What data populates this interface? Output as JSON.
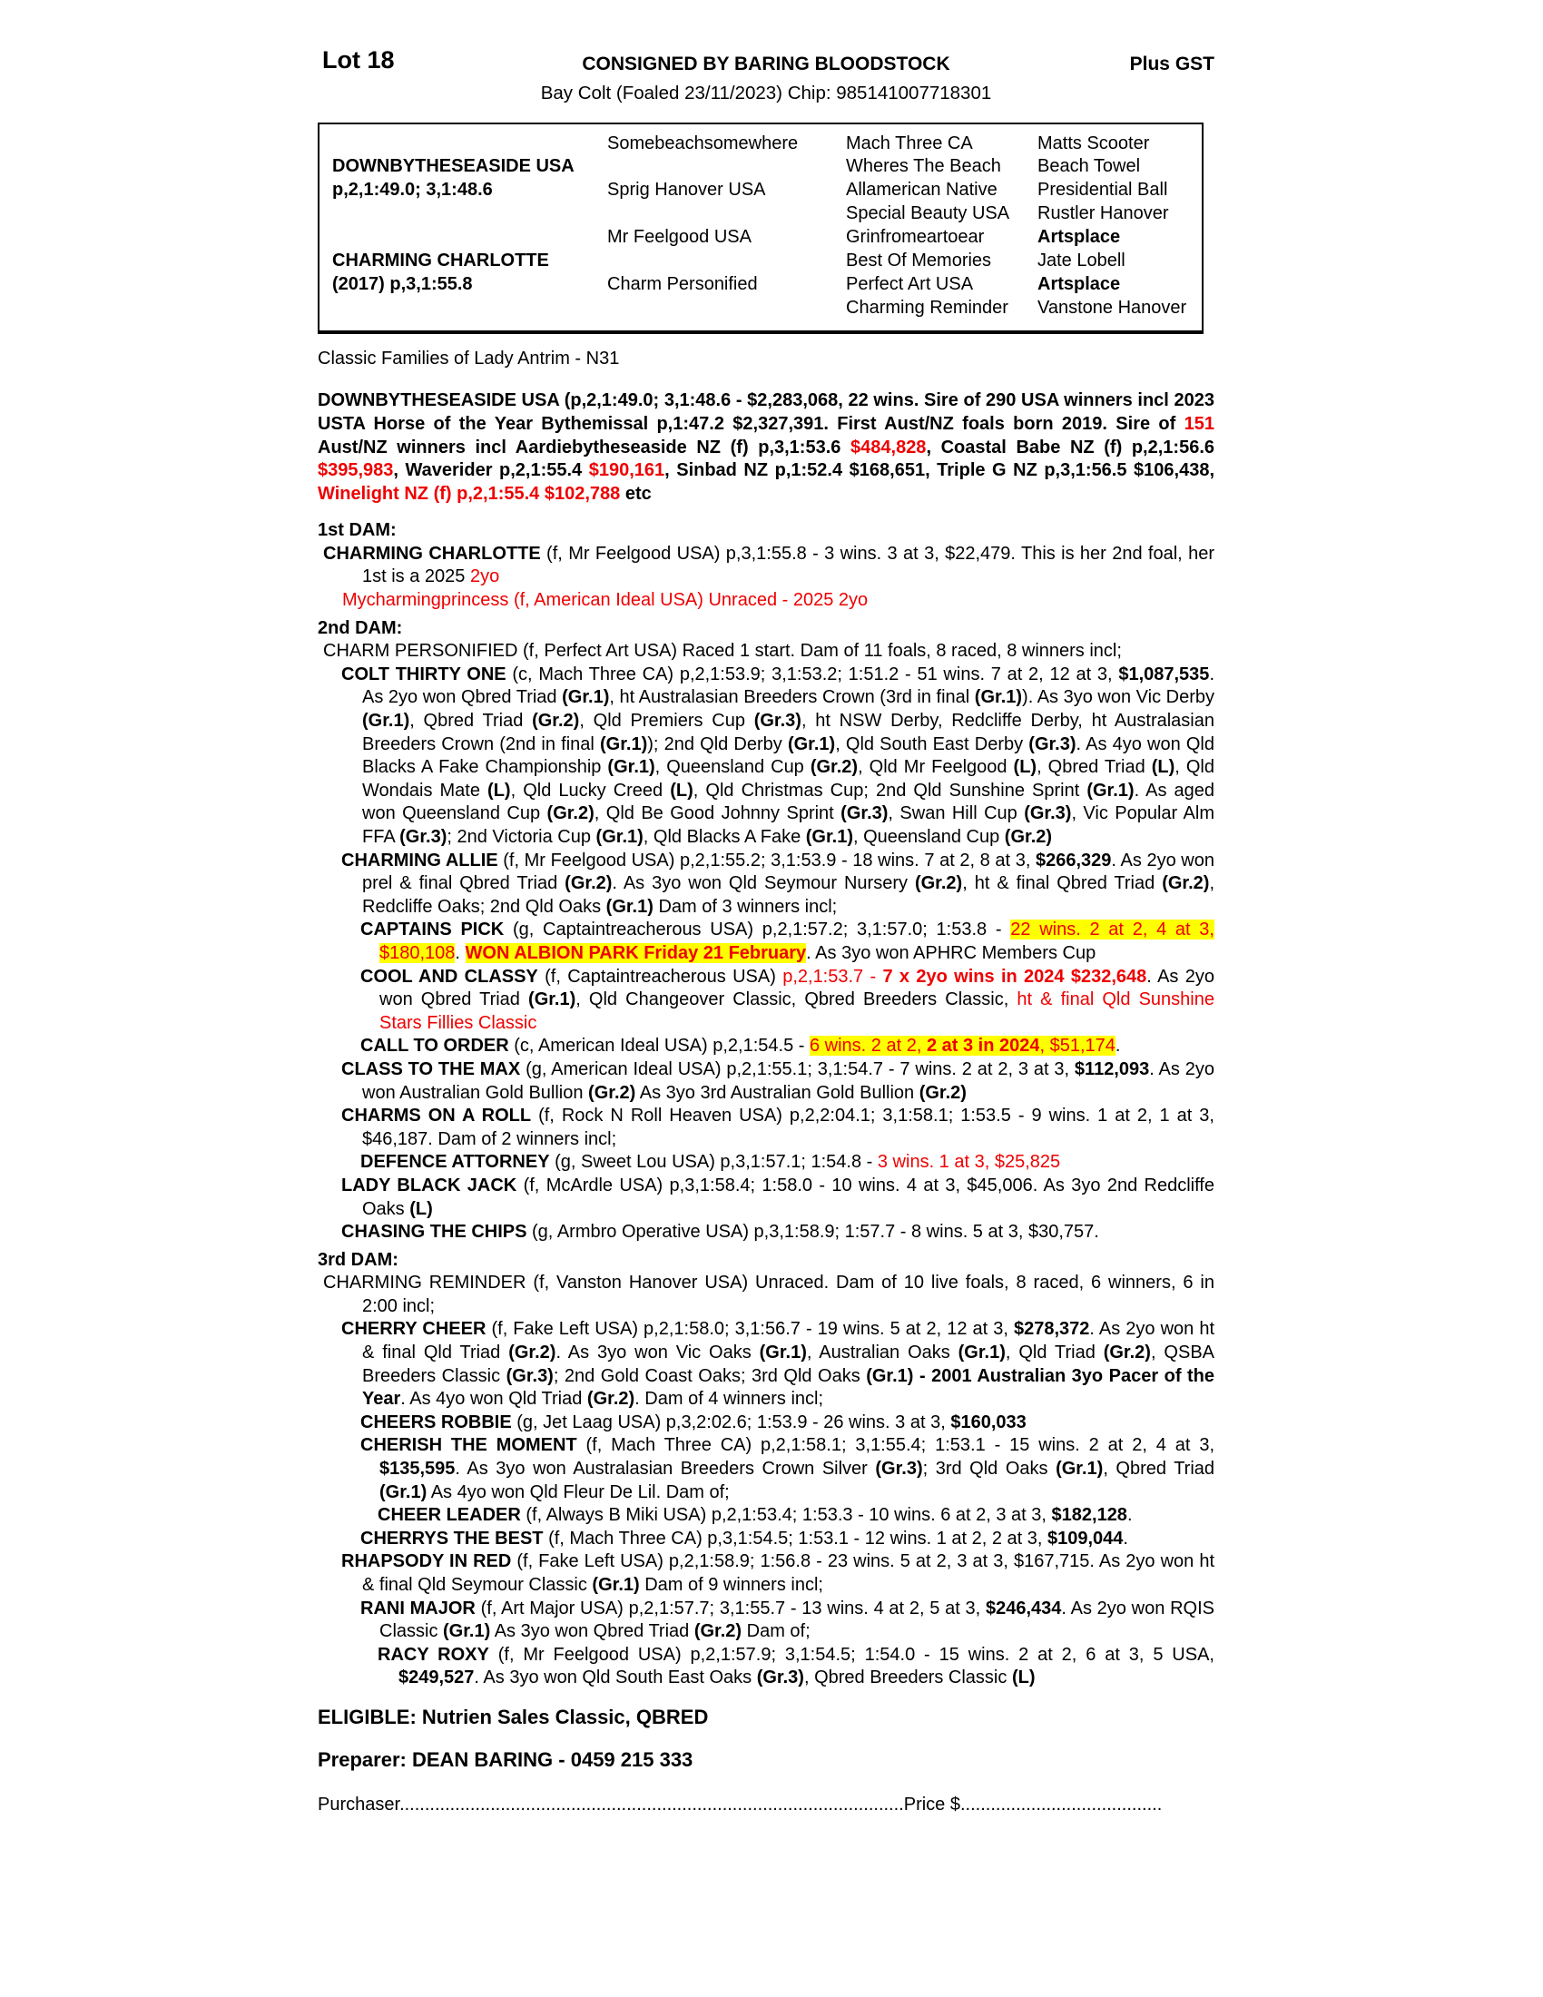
{
  "colors": {
    "accent_red": "#ee0000",
    "highlight_yellow": "#ffff00"
  },
  "header": {
    "lot": "Lot 18",
    "consigned": "CONSIGNED BY BARING BLOODSTOCK",
    "plus_gst": "Plus GST",
    "subtitle": "Bay Colt (Foaled 23/11/2023) Chip: 985141007718301"
  },
  "pedigree": {
    "rows": [
      {
        "c1": "",
        "c2": "Somebeachsomewhere",
        "c3": "Mach Three CA",
        "c4": "Matts Scooter"
      },
      {
        "c1": "DOWNBYTHESEASIDE USA",
        "c2": "",
        "c3": "Wheres The Beach",
        "c4": "Beach Towel"
      },
      {
        "c1": "p,2,1:49.0; 3,1:48.6",
        "c2": "Sprig Hanover USA",
        "c3": "Allamerican Native",
        "c4": "Presidential Ball"
      },
      {
        "c1": "",
        "c2": "",
        "c3": "Special Beauty USA",
        "c4": "Rustler Hanover"
      },
      {
        "c1": "",
        "c2": "Mr Feelgood USA",
        "c3": "Grinfromeartoear",
        "c4": "Artsplace"
      },
      {
        "c1": "CHARMING CHARLOTTE",
        "c2": "",
        "c3": "Best Of Memories",
        "c4": "Jate Lobell"
      },
      {
        "c1": "(2017) p,3,1:55.8",
        "c2": "Charm Personified",
        "c3": "Perfect Art USA",
        "c4": "Artsplace"
      },
      {
        "c1": "",
        "c2": "",
        "c3": "Charming Reminder",
        "c4": "Vanstone Hanover"
      }
    ]
  },
  "family_line": "Classic Families of Lady Antrim - N31",
  "sire": {
    "s": [
      {
        "t": "DOWNBYTHESEASIDE USA (p,2,1:49.0; 3,1:48.6 - $2,283,068, 22 wins. Sire of 290 USA winners incl 2023 USTA Horse of the Year Bythemissal p,1:47.2 $2,327,391. First Aust/NZ foals born 2019. Sire of "
      },
      {
        "t": "151",
        "f": "r"
      },
      {
        "t": " Aust/NZ winners incl Aardiebytheseaside NZ (f) p,3,1:53.6 "
      },
      {
        "t": "$484,828",
        "f": "r"
      },
      {
        "t": ", Coastal Babe NZ (f) p,2,1:56.6 "
      },
      {
        "t": "$395,983",
        "f": "r"
      },
      {
        "t": ", Waverider p,2,1:55.4 "
      },
      {
        "t": "$190,161",
        "f": "r"
      },
      {
        "t": ", Sinbad NZ p,1:52.4 $168,651, Triple G NZ p,3,1:56.5 $106,438, "
      },
      {
        "t": "Winelight NZ (f) p,2,1:55.4 $102,788",
        "f": "r"
      },
      {
        "t": " etc"
      }
    ]
  },
  "dams": {
    "first_heading": "1st DAM:",
    "second_heading": "2nd DAM:",
    "third_heading": "3rd DAM:"
  },
  "entries": {
    "charming_charlotte": {
      "s": [
        {
          "t": "CHARMING CHARLOTTE",
          "f": "b"
        },
        {
          "t": " (f, Mr Feelgood USA) p,3,1:55.8 - 3 wins. 3 at 3, $22,479. This is her 2nd foal, her 1st is a 2025 "
        },
        {
          "t": "2yo",
          "f": "r"
        }
      ]
    },
    "mycharmingprincess": {
      "s": [
        {
          "t": "Mycharmingprincess (f, American Ideal USA) Unraced - 2025 2yo",
          "f": "r"
        }
      ]
    },
    "charm_personified": {
      "s": [
        {
          "t": "CHARM PERSONIFIED (f, Perfect Art USA) Raced 1 start. Dam of 11 foals, 8 raced, 8 winners incl;"
        }
      ]
    },
    "colt_thirty_one": {
      "s": [
        {
          "t": "COLT THIRTY ONE",
          "f": "b"
        },
        {
          "t": " (c, Mach Three CA) p,2,1:53.9; 3,1:53.2; 1:51.2 - 51 wins. 7 at 2, 12 at 3, "
        },
        {
          "t": "$1,087,535",
          "f": "b"
        },
        {
          "t": ". As 2yo won Qbred Triad "
        },
        {
          "t": "(Gr.1)",
          "f": "b"
        },
        {
          "t": ", ht Australasian Breeders Crown (3rd in final "
        },
        {
          "t": "(Gr.1)",
          "f": "b"
        },
        {
          "t": "). As 3yo won Vic Derby "
        },
        {
          "t": "(Gr.1)",
          "f": "b"
        },
        {
          "t": ", Qbred Triad "
        },
        {
          "t": "(Gr.2)",
          "f": "b"
        },
        {
          "t": ", Qld Premiers Cup "
        },
        {
          "t": "(Gr.3)",
          "f": "b"
        },
        {
          "t": ", ht NSW Derby, Redcliffe Derby, ht Australasian Breeders Crown (2nd in final "
        },
        {
          "t": "(Gr.1)",
          "f": "b"
        },
        {
          "t": "); 2nd Qld Derby "
        },
        {
          "t": "(Gr.1)",
          "f": "b"
        },
        {
          "t": ", Qld South East Derby "
        },
        {
          "t": "(Gr.3)",
          "f": "b"
        },
        {
          "t": ". As 4yo won Qld Blacks A Fake Championship "
        },
        {
          "t": "(Gr.1)",
          "f": "b"
        },
        {
          "t": ", Queensland Cup "
        },
        {
          "t": "(Gr.2)",
          "f": "b"
        },
        {
          "t": ", Qld Mr Feelgood "
        },
        {
          "t": "(L)",
          "f": "b"
        },
        {
          "t": ", Qbred Triad "
        },
        {
          "t": "(L)",
          "f": "b"
        },
        {
          "t": ", Qld Wondais Mate "
        },
        {
          "t": "(L)",
          "f": "b"
        },
        {
          "t": ", Qld Lucky Creed "
        },
        {
          "t": "(L)",
          "f": "b"
        },
        {
          "t": ", Qld Christmas Cup; 2nd Qld Sunshine Sprint "
        },
        {
          "t": "(Gr.1)",
          "f": "b"
        },
        {
          "t": ". As aged won Queensland Cup "
        },
        {
          "t": "(Gr.2)",
          "f": "b"
        },
        {
          "t": ", Qld Be Good Johnny Sprint "
        },
        {
          "t": "(Gr.3)",
          "f": "b"
        },
        {
          "t": ", Swan Hill Cup "
        },
        {
          "t": "(Gr.3)",
          "f": "b"
        },
        {
          "t": ", Vic Popular Alm FFA "
        },
        {
          "t": "(Gr.3)",
          "f": "b"
        },
        {
          "t": "; 2nd Victoria Cup "
        },
        {
          "t": "(Gr.1)",
          "f": "b"
        },
        {
          "t": ", Qld Blacks A Fake "
        },
        {
          "t": "(Gr.1)",
          "f": "b"
        },
        {
          "t": ", Queensland Cup "
        },
        {
          "t": "(Gr.2)",
          "f": "b"
        }
      ]
    },
    "charming_allie": {
      "s": [
        {
          "t": "CHARMING ALLIE",
          "f": "b"
        },
        {
          "t": " (f, Mr Feelgood USA) p,2,1:55.2; 3,1:53.9 - 18 wins. 7 at 2, 8 at 3, "
        },
        {
          "t": "$266,329",
          "f": "b"
        },
        {
          "t": ". As 2yo won prel & final Qbred Triad "
        },
        {
          "t": "(Gr.2)",
          "f": "b"
        },
        {
          "t": ". As 3yo won Qld Seymour Nursery "
        },
        {
          "t": "(Gr.2)",
          "f": "b"
        },
        {
          "t": ", ht & final Qbred Triad "
        },
        {
          "t": "(Gr.2)",
          "f": "b"
        },
        {
          "t": ", Redcliffe Oaks; 2nd Qld Oaks "
        },
        {
          "t": "(Gr.1)",
          "f": "b"
        },
        {
          "t": " Dam of 3 winners incl;"
        }
      ]
    },
    "captains_pick": {
      "s": [
        {
          "t": "CAPTAINS PICK",
          "f": "b"
        },
        {
          "t": " (g, Captaintreacherous USA) p,2,1:57.2; 3,1:57.0; 1:53.8 - "
        },
        {
          "t": "22 wins. 2 at 2, 4 at 3, $180,108",
          "f": "ry"
        },
        {
          "t": ". "
        },
        {
          "t": "WON ALBION PARK Friday 21 February",
          "f": "bry"
        },
        {
          "t": ". As 3yo won APHRC Members Cup"
        }
      ]
    },
    "cool_and_classy": {
      "s": [
        {
          "t": "COOL AND CLASSY",
          "f": "b"
        },
        {
          "t": " (f, Captaintreacherous USA) "
        },
        {
          "t": "p,2,1:53.7 - ",
          "f": "r"
        },
        {
          "t": "7 x 2yo wins in 2024 $232,648",
          "f": "br"
        },
        {
          "t": ". As 2yo won Qbred Triad "
        },
        {
          "t": "(Gr.1)",
          "f": "b"
        },
        {
          "t": ", Qld Changeover Classic, Qbred Breeders Classic, "
        },
        {
          "t": "ht & final Qld Sunshine Stars Fillies Classic",
          "f": "r"
        }
      ]
    },
    "call_to_order": {
      "s": [
        {
          "t": "CALL TO ORDER",
          "f": "b"
        },
        {
          "t": " (c, American Ideal USA) p,2,1:54.5 - "
        },
        {
          "t": "6 wins. 2 at 2, ",
          "f": "ry"
        },
        {
          "t": "2 at 3 in 2024",
          "f": "bry"
        },
        {
          "t": ", $51,174",
          "f": "ry"
        },
        {
          "t": "."
        }
      ]
    },
    "class_to_the_max": {
      "s": [
        {
          "t": "CLASS TO THE MAX",
          "f": "b"
        },
        {
          "t": " (g, American Ideal USA) p,2,1:55.1; 3,1:54.7 - 7 wins. 2 at 2, 3 at 3, "
        },
        {
          "t": "$112,093",
          "f": "b"
        },
        {
          "t": ". As 2yo won Australian Gold Bullion "
        },
        {
          "t": "(Gr.2)",
          "f": "b"
        },
        {
          "t": " As 3yo 3rd Australian Gold Bullion "
        },
        {
          "t": "(Gr.2)",
          "f": "b"
        }
      ]
    },
    "charms_on_a_roll": {
      "s": [
        {
          "t": "CHARMS ON A ROLL",
          "f": "b"
        },
        {
          "t": " (f, Rock N Roll Heaven USA) p,2,2:04.1; 3,1:58.1; 1:53.5 - 9 wins. 1 at 2, 1 at 3, $46,187. Dam of 2 winners incl;"
        }
      ]
    },
    "defence_attorney": {
      "s": [
        {
          "t": "DEFENCE ATTORNEY",
          "f": "b"
        },
        {
          "t": " (g, Sweet Lou USA) p,3,1:57.1; 1:54.8 - "
        },
        {
          "t": "3 wins. 1 at 3, $25,825",
          "f": "r"
        }
      ]
    },
    "lady_black_jack": {
      "s": [
        {
          "t": "LADY BLACK JACK",
          "f": "b"
        },
        {
          "t": " (f, McArdle USA) p,3,1:58.4; 1:58.0 - 10 wins. 4 at 3, $45,006. As 3yo 2nd Redcliffe Oaks "
        },
        {
          "t": "(L)",
          "f": "b"
        }
      ]
    },
    "chasing_the_chips": {
      "s": [
        {
          "t": "CHASING THE CHIPS",
          "f": "b"
        },
        {
          "t": " (g, Armbro Operative USA) p,3,1:58.9; 1:57.7 - 8 wins. 5 at 3, $30,757."
        }
      ]
    },
    "charming_reminder": {
      "s": [
        {
          "t": "CHARMING REMINDER (f, Vanston Hanover USA) Unraced. Dam of 10 live foals, 8 raced, 6 winners, 6 in 2:00 incl;"
        }
      ]
    },
    "cherry_cheer": {
      "s": [
        {
          "t": "CHERRY CHEER",
          "f": "b"
        },
        {
          "t": " (f, Fake Left USA) p,2,1:58.0; 3,1:56.7 - 19 wins. 5 at 2, 12 at 3, "
        },
        {
          "t": "$278,372",
          "f": "b"
        },
        {
          "t": ". As 2yo won ht & final Qld Triad "
        },
        {
          "t": "(Gr.2)",
          "f": "b"
        },
        {
          "t": ". As 3yo won Vic Oaks "
        },
        {
          "t": "(Gr.1)",
          "f": "b"
        },
        {
          "t": ", Australian Oaks "
        },
        {
          "t": "(Gr.1)",
          "f": "b"
        },
        {
          "t": ", Qld Triad "
        },
        {
          "t": "(Gr.2)",
          "f": "b"
        },
        {
          "t": ", QSBA Breeders Classic "
        },
        {
          "t": "(Gr.3)",
          "f": "b"
        },
        {
          "t": "; 2nd Gold Coast Oaks; 3rd Qld Oaks "
        },
        {
          "t": "(Gr.1) - 2001 Australian 3yo Pacer of the Year",
          "f": "b"
        },
        {
          "t": ". As 4yo won Qld Triad "
        },
        {
          "t": "(Gr.2)",
          "f": "b"
        },
        {
          "t": ". Dam of 4 winners incl;"
        }
      ]
    },
    "cheers_robbie": {
      "s": [
        {
          "t": "CHEERS ROBBIE",
          "f": "b"
        },
        {
          "t": " (g, Jet Laag USA) p,3,2:02.6; 1:53.9 - 26 wins. 3 at 3, "
        },
        {
          "t": "$160,033",
          "f": "b"
        }
      ]
    },
    "cherish_the_moment": {
      "s": [
        {
          "t": "CHERISH THE MOMENT",
          "f": "b"
        },
        {
          "t": " (f, Mach Three CA) p,2,1:58.1; 3,1:55.4; 1:53.1 - 15 wins. 2 at 2, 4 at 3, "
        },
        {
          "t": "$135,595",
          "f": "b"
        },
        {
          "t": ". As 3yo won Australasian Breeders Crown Silver "
        },
        {
          "t": "(Gr.3)",
          "f": "b"
        },
        {
          "t": "; 3rd Qld Oaks "
        },
        {
          "t": "(Gr.1)",
          "f": "b"
        },
        {
          "t": ", Qbred Triad "
        },
        {
          "t": "(Gr.1)",
          "f": "b"
        },
        {
          "t": " As 4yo won Qld Fleur De Lil. Dam of;"
        }
      ]
    },
    "cheer_leader": {
      "s": [
        {
          "t": "CHEER LEADER",
          "f": "b"
        },
        {
          "t": " (f, Always B Miki USA) p,2,1:53.4; 1:53.3 - 10 wins. 6 at 2, 3 at 3, "
        },
        {
          "t": "$182,128",
          "f": "b"
        },
        {
          "t": "."
        }
      ]
    },
    "cherrys_the_best": {
      "s": [
        {
          "t": "CHERRYS THE BEST",
          "f": "b"
        },
        {
          "t": " (f, Mach Three CA) p,3,1:54.5; 1:53.1 - 12 wins. 1 at 2, 2 at 3, "
        },
        {
          "t": "$109,044",
          "f": "b"
        },
        {
          "t": "."
        }
      ]
    },
    "rhapsody_in_red": {
      "s": [
        {
          "t": "RHAPSODY IN RED",
          "f": "b"
        },
        {
          "t": " (f, Fake Left USA) p,2,1:58.9; 1:56.8 - 23 wins. 5 at 2, 3 at 3, $167,715. As 2yo won ht & final Qld Seymour Classic "
        },
        {
          "t": "(Gr.1)",
          "f": "b"
        },
        {
          "t": " Dam of 9 winners incl;"
        }
      ]
    },
    "rani_major": {
      "s": [
        {
          "t": "RANI MAJOR",
          "f": "b"
        },
        {
          "t": " (f, Art Major USA) p,2,1:57.7; 3,1:55.7 - 13 wins. 4 at 2, 5 at 3, "
        },
        {
          "t": "$246,434",
          "f": "b"
        },
        {
          "t": ". As 2yo won RQIS Classic "
        },
        {
          "t": "(Gr.1)",
          "f": "b"
        },
        {
          "t": " As 3yo won Qbred Triad "
        },
        {
          "t": "(Gr.2)",
          "f": "b"
        },
        {
          "t": " Dam of;"
        }
      ]
    },
    "racy_roxy": {
      "s": [
        {
          "t": "RACY ROXY",
          "f": "b"
        },
        {
          "t": " (f, Mr Feelgood USA) p,2,1:57.9; 3,1:54.5; 1:54.0 - 15 wins. 2 at 2, 6 at 3, 5 USA, "
        },
        {
          "t": "$249,527",
          "f": "b"
        },
        {
          "t": ". As 3yo won Qld South East Oaks "
        },
        {
          "t": "(Gr.3)",
          "f": "b"
        },
        {
          "t": ", Qbred Breeders Classic "
        },
        {
          "t": "(L)",
          "f": "b"
        }
      ]
    }
  },
  "footer": {
    "eligible": "ELIGIBLE: Nutrien Sales Classic, QBRED",
    "preparer": "Preparer: DEAN BARING - 0459 215 333",
    "purchaser_label": "Purchaser",
    "purchaser_dots": "....................................................................................................",
    "price_label": "Price $",
    "price_dots": "........................................"
  }
}
